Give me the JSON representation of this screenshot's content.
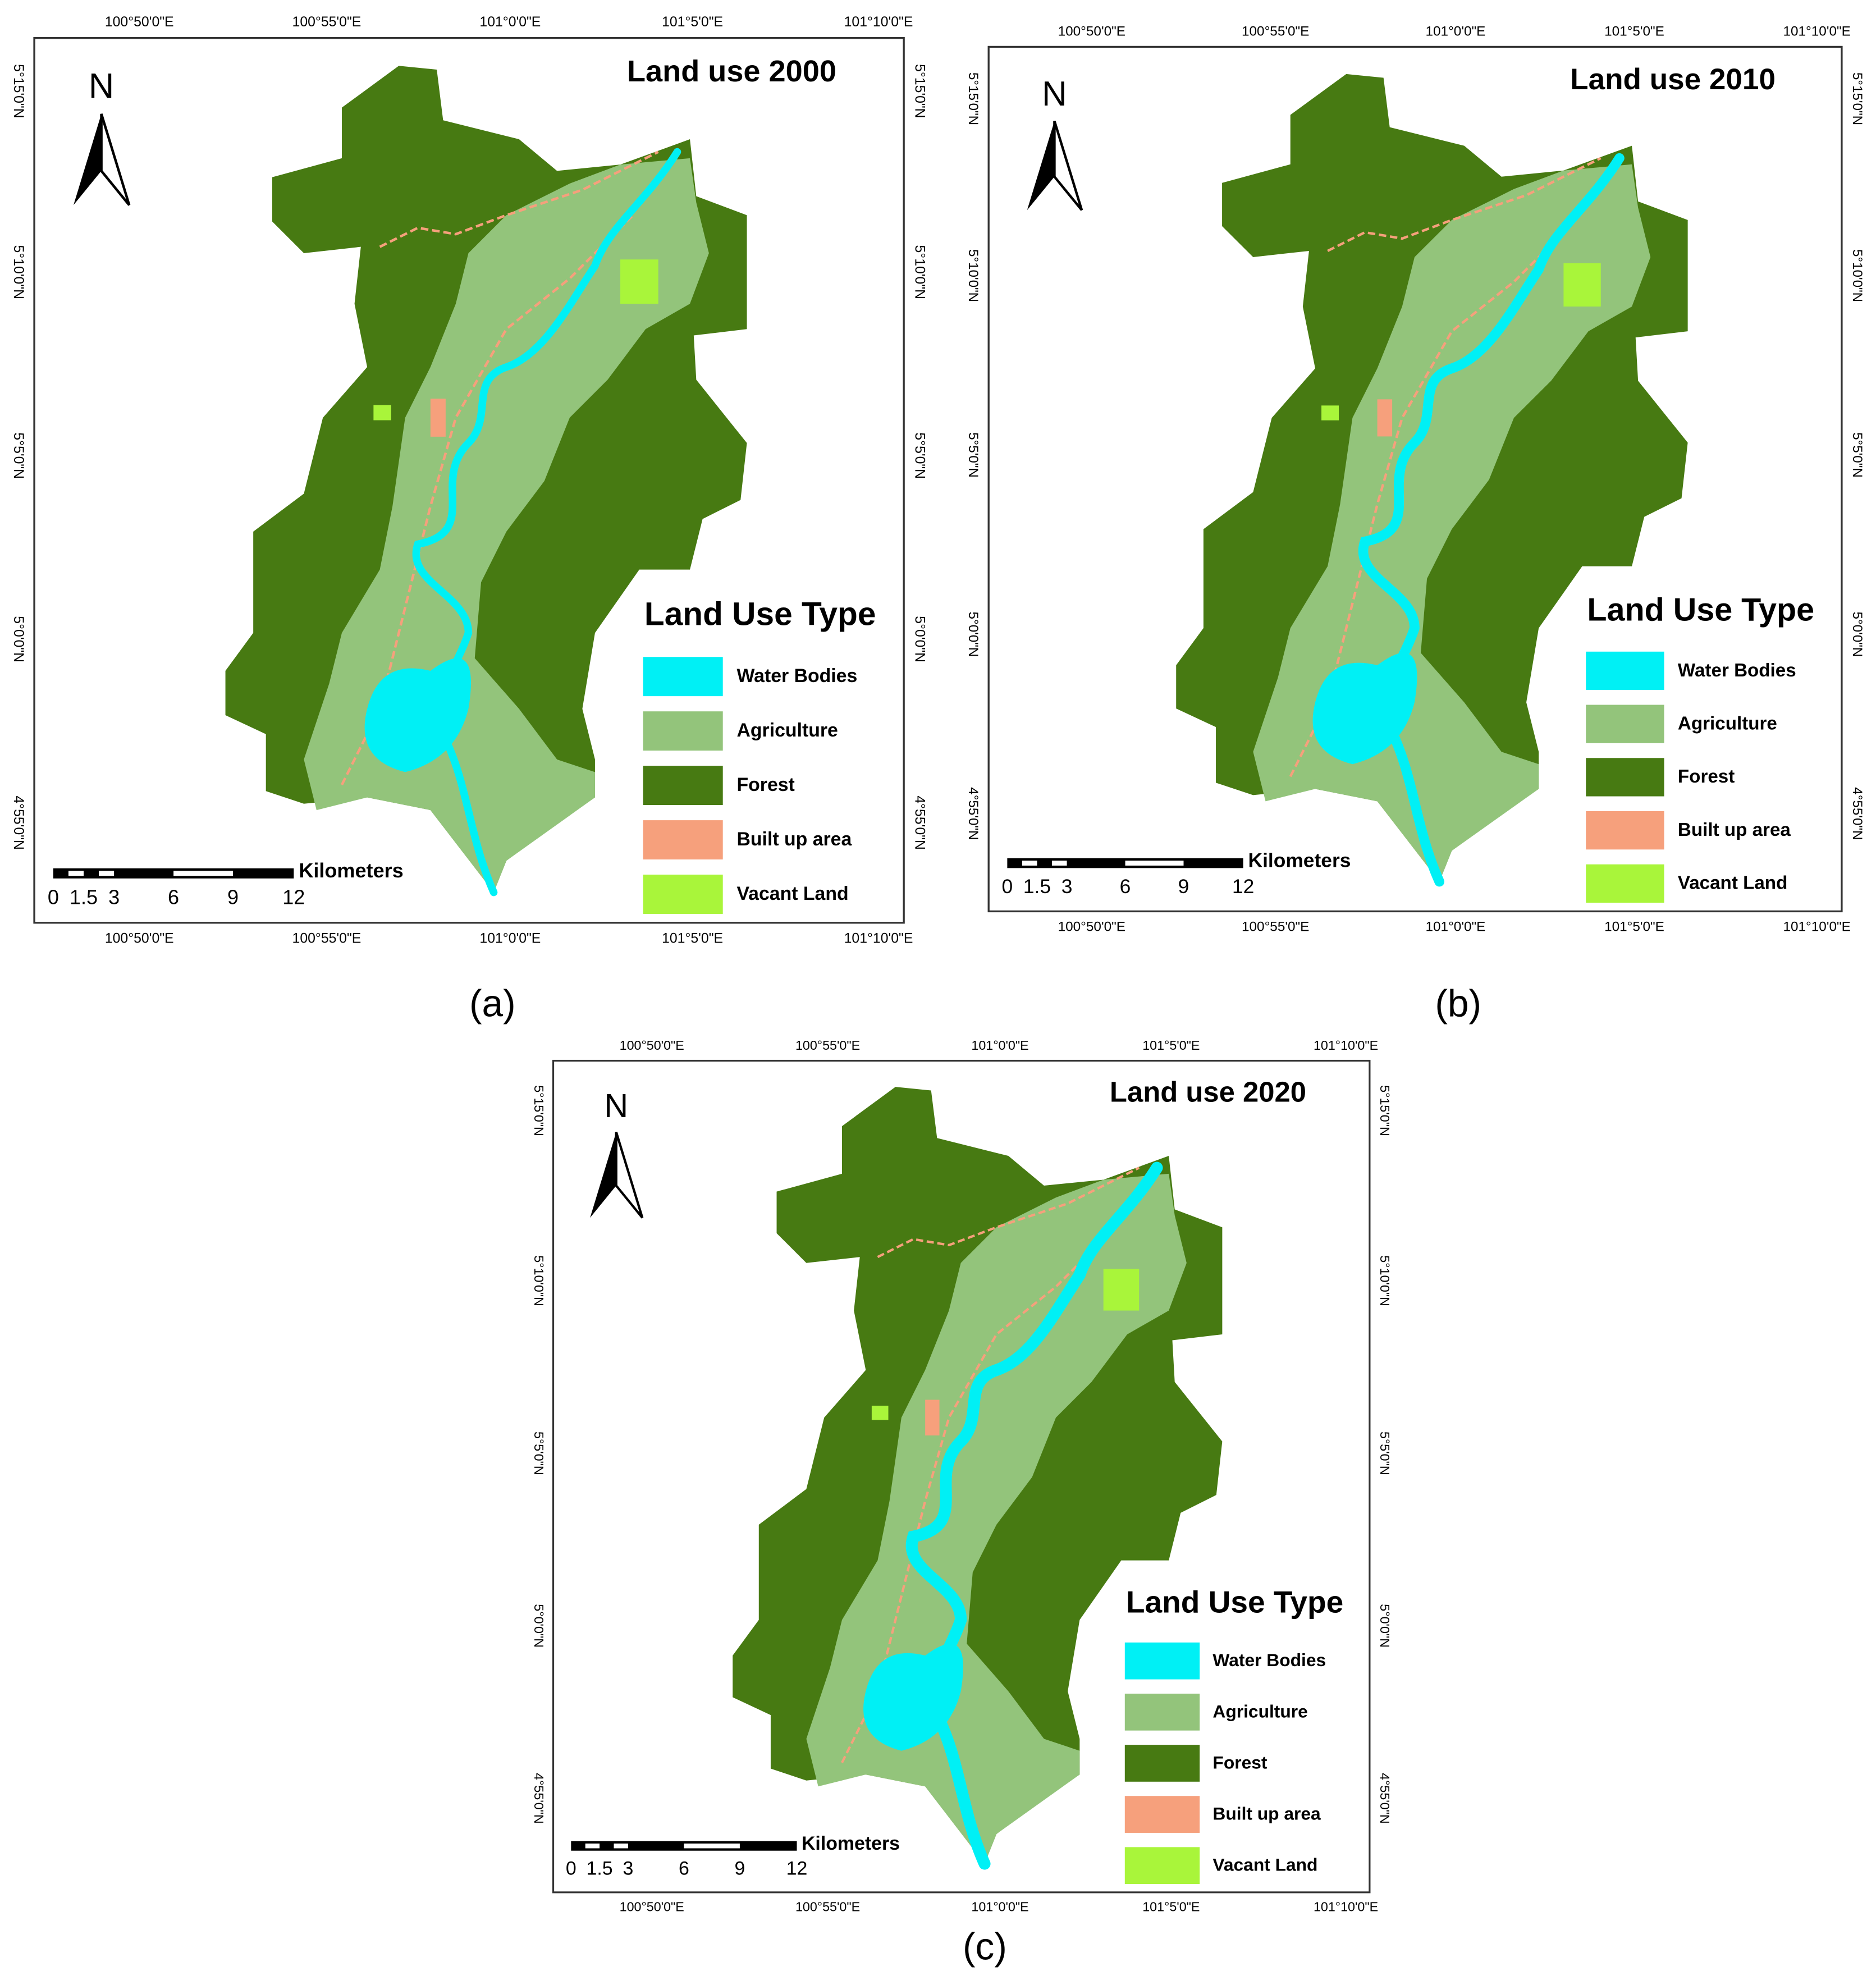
{
  "panels": [
    {
      "caption": "(a)",
      "title": "Land use 2000",
      "north": "N",
      "top_ticks": [
        "100°50'0\"E",
        "100°55'0\"E",
        "101°0'0\"E",
        "101°5'0\"E",
        "101°10'0\"E"
      ],
      "bottom_ticks": [
        "100°50'0\"E",
        "100°55'0\"E",
        "101°0'0\"E",
        "101°5'0\"E",
        "101°10'0\"E"
      ],
      "left_ticks": [
        "5°15'0\"N",
        "5°10'0\"N",
        "5°5'0\"N",
        "5°0'0\"N",
        "4°55'0\"N"
      ],
      "right_ticks": [
        "5°15'0\"N",
        "5°10'0\"N",
        "5°5'0\"N",
        "5°0'0\"N",
        "4°55'0\"N"
      ],
      "legend_title": "Land Use Type",
      "legend": [
        {
          "label": "Water Bodies",
          "color": "#00f0f5"
        },
        {
          "label": "Agriculture",
          "color": "#93c47b"
        },
        {
          "label": "Forest",
          "color": "#477a12"
        },
        {
          "label": "Built up area",
          "color": "#f6a07c"
        },
        {
          "label": "Vacant Land",
          "color": "#a9f53a"
        }
      ],
      "scale_labels": [
        0,
        1.5,
        3,
        6,
        9,
        12
      ],
      "scale_unit": "Kilometers"
    },
    {
      "caption": "(b)",
      "title": "Land use 2010",
      "north": "N",
      "top_ticks": [
        "100°50'0\"E",
        "100°55'0\"E",
        "101°0'0\"E",
        "101°5'0\"E",
        "101°10'0\"E"
      ],
      "bottom_ticks": [
        "100°50'0\"E",
        "100°55'0\"E",
        "101°0'0\"E",
        "101°5'0\"E",
        "101°10'0\"E"
      ],
      "left_ticks": [
        "5°15'0\"N",
        "5°10'0\"N",
        "5°5'0\"N",
        "5°0'0\"N",
        "4°55'0\"N"
      ],
      "right_ticks": [
        "5°15'0\"N",
        "5°10'0\"N",
        "5°5'0\"N",
        "5°0'0\"N",
        "4°55'0\"N"
      ],
      "legend_title": "Land Use Type",
      "legend": [
        {
          "label": "Water Bodies",
          "color": "#00f0f5"
        },
        {
          "label": "Agriculture",
          "color": "#93c47b"
        },
        {
          "label": "Forest",
          "color": "#477a12"
        },
        {
          "label": "Built up area",
          "color": "#f6a07c"
        },
        {
          "label": "Vacant Land",
          "color": "#a9f53a"
        }
      ],
      "scale_labels": [
        0,
        1.5,
        3,
        6,
        9,
        12
      ],
      "scale_unit": "Kilometers"
    },
    {
      "caption": "(c)",
      "title": "Land use 2020",
      "north": "N",
      "top_ticks": [
        "100°50'0\"E",
        "100°55'0\"E",
        "101°0'0\"E",
        "101°5'0\"E",
        "101°10'0\"E"
      ],
      "bottom_ticks": [
        "100°50'0\"E",
        "100°55'0\"E",
        "101°0'0\"E",
        "101°5'0\"E",
        "101°10'0\"E"
      ],
      "left_ticks": [
        "5°15'0\"N",
        "5°10'0\"N",
        "5°5'0\"N",
        "5°0'0\"N",
        "4°55'0\"N"
      ],
      "right_ticks": [
        "5°15'0\"N",
        "5°10'0\"N",
        "5°5'0\"N",
        "5°0'0\"N",
        "4°55'0\"N"
      ],
      "legend_title": "Land Use Type",
      "legend": [
        {
          "label": "Water Bodies",
          "color": "#00f0f5"
        },
        {
          "label": "Agriculture",
          "color": "#93c47b"
        },
        {
          "label": "Forest",
          "color": "#477a12"
        },
        {
          "label": "Built up area",
          "color": "#f6a07c"
        },
        {
          "label": "Vacant Land",
          "color": "#a9f53a"
        }
      ],
      "scale_labels": [
        0,
        1.5,
        3,
        6,
        9,
        12
      ],
      "scale_unit": "Kilometers"
    }
  ]
}
